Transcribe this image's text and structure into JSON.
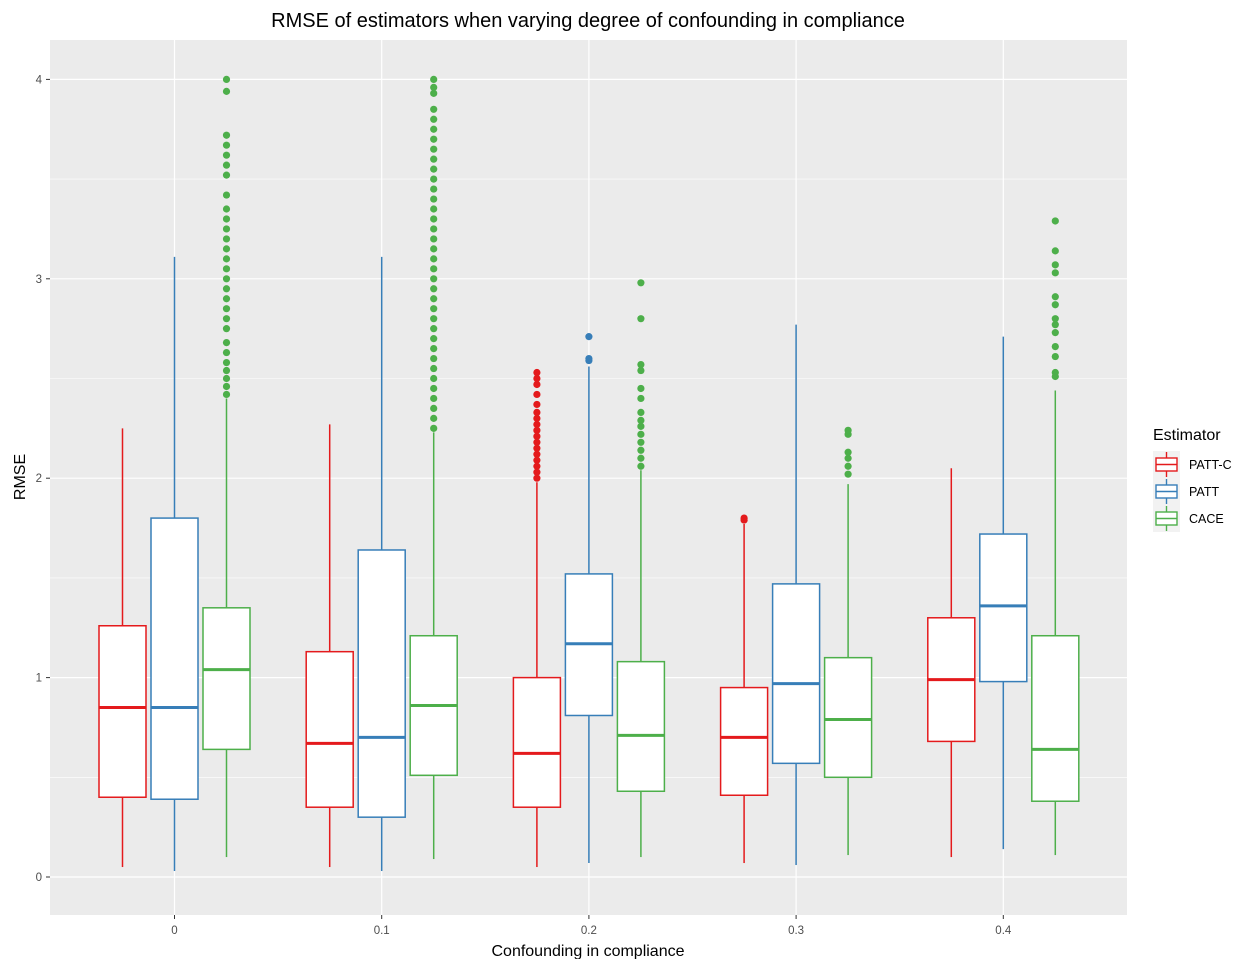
{
  "chart_data": {
    "type": "boxplot",
    "title": "RMSE of estimators when varying degree of confounding in compliance",
    "xlabel": "Confounding in compliance",
    "ylabel": "RMSE",
    "categories": [
      "0",
      "0.1",
      "0.2",
      "0.3",
      "0.4"
    ],
    "y_ticks": [
      "0",
      "1",
      "2",
      "3",
      "4"
    ],
    "ylim": [
      -0.19,
      4.2
    ],
    "grid": true,
    "legend": {
      "title": "Estimator",
      "placement": "right"
    },
    "series": [
      {
        "name": "PATT-C",
        "color": "#E41A1C",
        "boxes": [
          {
            "min": 0.05,
            "q1": 0.4,
            "median": 0.85,
            "q3": 1.26,
            "max": 2.25,
            "outliers": []
          },
          {
            "min": 0.05,
            "q1": 0.35,
            "median": 0.67,
            "q3": 1.13,
            "max": 2.27,
            "outliers": []
          },
          {
            "min": 0.05,
            "q1": 0.35,
            "median": 0.62,
            "q3": 1.0,
            "max": 1.98,
            "outliers": [
              2.0,
              2.03,
              2.06,
              2.09,
              2.12,
              2.15,
              2.18,
              2.21,
              2.24,
              2.27,
              2.3,
              2.33,
              2.37,
              2.42,
              2.47,
              2.5,
              2.53
            ]
          },
          {
            "min": 0.07,
            "q1": 0.41,
            "median": 0.7,
            "q3": 0.95,
            "max": 1.77,
            "outliers": [
              1.79,
              1.8
            ]
          },
          {
            "min": 0.1,
            "q1": 0.68,
            "median": 0.99,
            "q3": 1.3,
            "max": 2.05,
            "outliers": []
          }
        ]
      },
      {
        "name": "PATT",
        "color": "#377EB8",
        "boxes": [
          {
            "min": 0.03,
            "q1": 0.39,
            "median": 0.85,
            "q3": 1.8,
            "max": 3.11,
            "outliers": []
          },
          {
            "min": 0.03,
            "q1": 0.3,
            "median": 0.7,
            "q3": 1.64,
            "max": 3.11,
            "outliers": []
          },
          {
            "min": 0.07,
            "q1": 0.81,
            "median": 1.17,
            "q3": 1.52,
            "max": 2.56,
            "outliers": [
              2.59,
              2.6,
              2.71
            ]
          },
          {
            "min": 0.06,
            "q1": 0.57,
            "median": 0.97,
            "q3": 1.47,
            "max": 2.77,
            "outliers": []
          },
          {
            "min": 0.14,
            "q1": 0.98,
            "median": 1.36,
            "q3": 1.72,
            "max": 2.71,
            "outliers": []
          }
        ]
      },
      {
        "name": "CACE",
        "color": "#4DAF4A",
        "boxes": [
          {
            "min": 0.1,
            "q1": 0.64,
            "median": 1.04,
            "q3": 1.35,
            "max": 2.4,
            "outliers": [
              2.42,
              2.46,
              2.5,
              2.54,
              2.58,
              2.63,
              2.68,
              2.75,
              2.8,
              2.85,
              2.9,
              2.95,
              3.0,
              3.05,
              3.1,
              3.15,
              3.2,
              3.25,
              3.3,
              3.35,
              3.42,
              3.52,
              3.57,
              3.62,
              3.67,
              3.72,
              3.94,
              4.0
            ]
          },
          {
            "min": 0.09,
            "q1": 0.51,
            "median": 0.86,
            "q3": 1.21,
            "max": 2.23,
            "outliers": [
              2.25,
              2.3,
              2.35,
              2.4,
              2.45,
              2.5,
              2.55,
              2.6,
              2.65,
              2.7,
              2.75,
              2.8,
              2.85,
              2.9,
              2.95,
              3.0,
              3.05,
              3.1,
              3.15,
              3.2,
              3.25,
              3.3,
              3.35,
              3.4,
              3.45,
              3.5,
              3.55,
              3.6,
              3.65,
              3.7,
              3.75,
              3.8,
              3.85,
              3.93,
              3.96,
              4.0
            ]
          },
          {
            "min": 0.1,
            "q1": 0.43,
            "median": 0.71,
            "q3": 1.08,
            "max": 2.04,
            "outliers": [
              2.06,
              2.1,
              2.14,
              2.18,
              2.22,
              2.26,
              2.29,
              2.33,
              2.4,
              2.45,
              2.54,
              2.57,
              2.8,
              2.98
            ]
          },
          {
            "min": 0.11,
            "q1": 0.5,
            "median": 0.79,
            "q3": 1.1,
            "max": 1.97,
            "outliers": [
              2.02,
              2.06,
              2.1,
              2.13,
              2.22,
              2.24
            ]
          },
          {
            "min": 0.11,
            "q1": 0.38,
            "median": 0.64,
            "q3": 1.21,
            "max": 2.44,
            "outliers": [
              2.51,
              2.53,
              2.61,
              2.66,
              2.73,
              2.77,
              2.8,
              2.87,
              2.91,
              3.03,
              3.07,
              3.14,
              3.29
            ]
          }
        ]
      }
    ]
  }
}
